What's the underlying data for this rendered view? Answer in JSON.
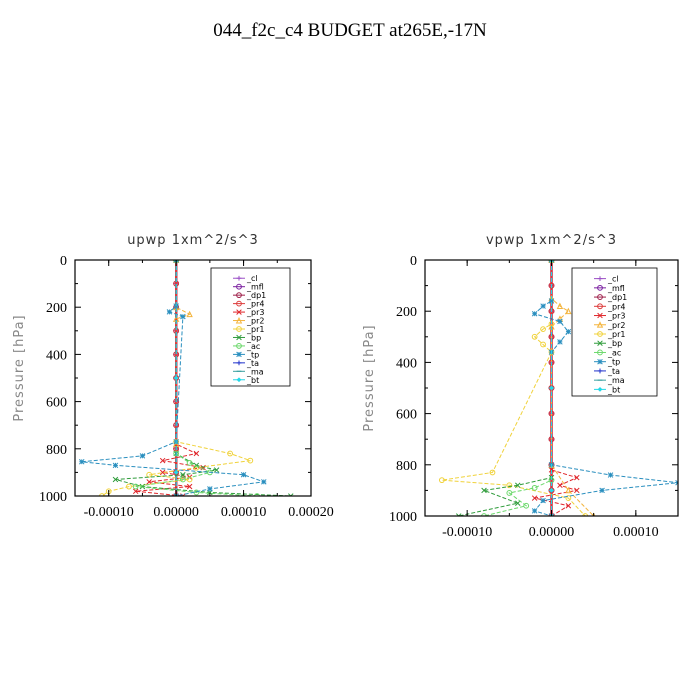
{
  "figure": {
    "title": "044_f2c_c4  BUDGET at265E,-17N"
  },
  "series_styles": [
    {
      "name": "_cl",
      "color": "#9a4fc6",
      "marker": "+"
    },
    {
      "name": "_mfl",
      "color": "#7a1fa0",
      "marker": "o"
    },
    {
      "name": "_dp1",
      "color": "#9e1f4a",
      "marker": "o"
    },
    {
      "name": "_pr4",
      "color": "#dd3b3b",
      "marker": "o"
    },
    {
      "name": "_pr3",
      "color": "#e0252a",
      "marker": "x"
    },
    {
      "name": "_pr2",
      "color": "#f4b43c",
      "marker": "^"
    },
    {
      "name": "_pr1",
      "color": "#f0d23a",
      "marker": "o"
    },
    {
      "name": "_bp",
      "color": "#2e9b3a",
      "marker": "x"
    },
    {
      "name": "_ac",
      "color": "#6ad86a",
      "marker": "o"
    },
    {
      "name": "_tp",
      "color": "#2a8fbf",
      "marker": "*"
    },
    {
      "name": "_ta",
      "color": "#2233cc",
      "marker": "+"
    },
    {
      "name": "_ma",
      "color": "#3aa0a0",
      "marker": "-"
    },
    {
      "name": "_bt",
      "color": "#22d8e8",
      "marker": "d"
    }
  ],
  "chart_data": [
    {
      "type": "line",
      "title": "upwp   1xm^2/s^3",
      "xlabel": "",
      "ylabel": "Pressure [hPa]",
      "xlim": [
        -0.00015,
        0.0002
      ],
      "ylim": [
        1000,
        0
      ],
      "xticks": [
        -0.0001,
        0.0,
        0.0001,
        0.0002
      ],
      "xtick_labels": [
        "-0.00010",
        "0.00000",
        "0.00010",
        "0.00020"
      ],
      "yticks": [
        0,
        200,
        400,
        600,
        800,
        1000
      ],
      "ytick_labels": [
        "0",
        "200",
        "400",
        "600",
        "800",
        "1000"
      ],
      "legend_position": "top-right",
      "series": [
        {
          "name": "_cl",
          "x": [
            0,
            0,
            0,
            0,
            0,
            0,
            0,
            0,
            0,
            0,
            0
          ],
          "y": [
            0,
            100,
            200,
            300,
            400,
            500,
            600,
            700,
            800,
            900,
            1000
          ]
        },
        {
          "name": "_mfl",
          "x": [
            0,
            0,
            0,
            0,
            0,
            0,
            0,
            0,
            0,
            0,
            0
          ],
          "y": [
            0,
            100,
            200,
            300,
            400,
            500,
            600,
            700,
            800,
            900,
            1000
          ]
        },
        {
          "name": "_dp1",
          "x": [
            0,
            0,
            0,
            0,
            0,
            0,
            0,
            0,
            0,
            0,
            0
          ],
          "y": [
            0,
            100,
            200,
            300,
            400,
            500,
            600,
            700,
            800,
            900,
            1000
          ]
        },
        {
          "name": "_pr4",
          "x": [
            0,
            0,
            0,
            0,
            0,
            0,
            0,
            0,
            0,
            0,
            0
          ],
          "y": [
            0,
            100,
            200,
            300,
            400,
            500,
            600,
            700,
            800,
            900,
            1000
          ]
        },
        {
          "name": "_pr3",
          "x": [
            0,
            0,
            3e-05,
            -2e-05,
            4e-05,
            -2e-05,
            2e-05,
            -4e-05,
            2e-05,
            -6e-05,
            1e-05
          ],
          "y": [
            0,
            780,
            820,
            850,
            880,
            900,
            920,
            940,
            960,
            980,
            1000
          ]
        },
        {
          "name": "_pr2",
          "x": [
            0,
            0,
            2e-05,
            0,
            0,
            0
          ],
          "y": [
            0,
            200,
            230,
            250,
            780,
            1000
          ]
        },
        {
          "name": "_pr1",
          "x": [
            0,
            0,
            8e-05,
            0.00011,
            3e-05,
            -4e-05,
            2e-05,
            -7e-05,
            -0.0001,
            -0.00011
          ],
          "y": [
            0,
            770,
            820,
            850,
            880,
            910,
            930,
            960,
            980,
            1000
          ]
        },
        {
          "name": "_bp",
          "x": [
            0,
            0,
            3e-05,
            6e-05,
            1e-05,
            -9e-05,
            -5e-05,
            5e-05,
            0.00017
          ],
          "y": [
            0,
            820,
            870,
            890,
            910,
            930,
            960,
            985,
            1000
          ]
        },
        {
          "name": "_ac",
          "x": [
            0,
            0,
            2e-05,
            5e-05,
            1e-05,
            -6e-05,
            3e-05,
            0.00012
          ],
          "y": [
            0,
            820,
            860,
            900,
            930,
            960,
            985,
            1000
          ]
        },
        {
          "name": "_tp",
          "x": [
            0,
            0,
            -1e-05,
            1e-05,
            0,
            -5e-05,
            -0.00014,
            -9e-05,
            0.0001,
            0.00013,
            5e-05,
            0
          ],
          "y": [
            0,
            195,
            220,
            240,
            770,
            830,
            855,
            870,
            910,
            940,
            970,
            1000
          ]
        },
        {
          "name": "_ta",
          "x": [
            0,
            0,
            0,
            0
          ],
          "y": [
            0,
            500,
            900,
            1000
          ]
        },
        {
          "name": "_ma",
          "x": [
            0,
            0,
            0,
            0
          ],
          "y": [
            0,
            500,
            900,
            1000
          ]
        },
        {
          "name": "_bt",
          "x": [
            0,
            0,
            0,
            0
          ],
          "y": [
            0,
            500,
            900,
            1000
          ]
        }
      ]
    },
    {
      "type": "line",
      "title": "vpwp   1xm^2/s^3",
      "xlabel": "",
      "ylabel": "Pressure [hPa]",
      "xlim": [
        -0.00015,
        0.00015
      ],
      "ylim": [
        1000,
        0
      ],
      "xticks": [
        -0.0001,
        0.0,
        0.0001
      ],
      "xtick_labels": [
        "-0.00010",
        "0.00000",
        "0.00010"
      ],
      "yticks": [
        0,
        200,
        400,
        600,
        800,
        1000
      ],
      "ytick_labels": [
        "0",
        "200",
        "400",
        "600",
        "800",
        "1000"
      ],
      "legend_position": "top-right",
      "series": [
        {
          "name": "_cl",
          "x": [
            0,
            0,
            0,
            0,
            0,
            0,
            0,
            0,
            0,
            0,
            0
          ],
          "y": [
            0,
            100,
            200,
            300,
            400,
            500,
            600,
            700,
            800,
            900,
            1000
          ]
        },
        {
          "name": "_mfl",
          "x": [
            0,
            0,
            0,
            0,
            0,
            0,
            0,
            0,
            0,
            0,
            0
          ],
          "y": [
            0,
            100,
            200,
            300,
            400,
            500,
            600,
            700,
            800,
            900,
            1000
          ]
        },
        {
          "name": "_dp1",
          "x": [
            0,
            0,
            0,
            0,
            0,
            0,
            0,
            0,
            0,
            0,
            0
          ],
          "y": [
            0,
            100,
            200,
            300,
            400,
            500,
            600,
            700,
            800,
            900,
            1000
          ]
        },
        {
          "name": "_pr4",
          "x": [
            0,
            0,
            0,
            0,
            0,
            0,
            0,
            0,
            0,
            0,
            0
          ],
          "y": [
            0,
            100,
            200,
            300,
            400,
            500,
            600,
            700,
            800,
            900,
            1000
          ]
        },
        {
          "name": "_pr3",
          "x": [
            0,
            0,
            3e-05,
            1e-05,
            3e-05,
            -2e-05,
            2e-05,
            0
          ],
          "y": [
            0,
            820,
            850,
            880,
            900,
            930,
            960,
            1000
          ]
        },
        {
          "name": "_pr2",
          "x": [
            0,
            0,
            1e-05,
            2e-05,
            1e-05,
            0,
            0,
            2e-05,
            5e-05
          ],
          "y": [
            0,
            150,
            180,
            200,
            230,
            260,
            800,
            900,
            1000
          ]
        },
        {
          "name": "_pr1",
          "x": [
            0,
            0,
            -1e-05,
            -2e-05,
            -1e-05,
            0,
            -7e-05,
            -0.00013,
            -5e-05,
            2e-05,
            4e-05
          ],
          "y": [
            0,
            250,
            270,
            300,
            330,
            360,
            830,
            860,
            880,
            930,
            1000
          ]
        },
        {
          "name": "_bp",
          "x": [
            0,
            0,
            -4e-05,
            -8e-05,
            -4e-05,
            -0.00011
          ],
          "y": [
            0,
            850,
            880,
            900,
            950,
            1000
          ]
        },
        {
          "name": "_ac",
          "x": [
            0,
            0,
            -2e-05,
            -5e-05,
            -3e-05,
            -8e-05
          ],
          "y": [
            0,
            860,
            890,
            910,
            960,
            1000
          ]
        },
        {
          "name": "_tp",
          "x": [
            0,
            0,
            -1e-05,
            -2e-05,
            1e-05,
            2e-05,
            1e-05,
            0,
            0,
            7e-05,
            0.00015,
            6e-05,
            -1e-05,
            -2e-05,
            0
          ],
          "y": [
            0,
            160,
            180,
            210,
            240,
            280,
            320,
            360,
            800,
            840,
            870,
            900,
            940,
            980,
            1000
          ]
        },
        {
          "name": "_ta",
          "x": [
            0,
            0,
            0,
            0
          ],
          "y": [
            0,
            500,
            900,
            1000
          ]
        },
        {
          "name": "_ma",
          "x": [
            0,
            0,
            0,
            0
          ],
          "y": [
            0,
            500,
            900,
            1000
          ]
        },
        {
          "name": "_bt",
          "x": [
            0,
            0,
            0,
            0
          ],
          "y": [
            0,
            500,
            900,
            1000
          ]
        }
      ]
    }
  ]
}
